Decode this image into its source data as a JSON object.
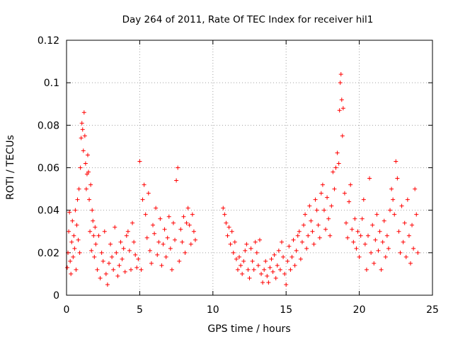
{
  "chart_data": {
    "type": "scatter",
    "title": "Day 264 of 2011, Rate Of TEC Index for receiver hil1",
    "xlabel": "GPS time / hours",
    "ylabel": "ROTI / TECUs",
    "xlim": [
      0,
      25
    ],
    "ylim": [
      0,
      0.12
    ],
    "xticks": [
      0,
      5,
      10,
      15,
      20,
      25
    ],
    "xtick_labels": [
      "0",
      "5",
      "10",
      "15",
      "20",
      "25"
    ],
    "yticks": [
      0,
      0.02,
      0.04,
      0.06,
      0.08,
      0.1,
      0.12
    ],
    "ytick_labels": [
      "0",
      "0.02",
      "0.04",
      "0.06",
      "0.08",
      "0.1",
      "0.12"
    ],
    "grid": true,
    "marker": "+",
    "series_color": "#ff0000",
    "points": [
      [
        0.05,
        0.013
      ],
      [
        0.1,
        0.02
      ],
      [
        0.15,
        0.03
      ],
      [
        0.2,
        0.039
      ],
      [
        0.25,
        0.016
      ],
      [
        0.3,
        0.01
      ],
      [
        0.35,
        0.025
      ],
      [
        0.4,
        0.035
      ],
      [
        0.45,
        0.018
      ],
      [
        0.5,
        0.028
      ],
      [
        0.55,
        0.022
      ],
      [
        0.6,
        0.04
      ],
      [
        0.65,
        0.012
      ],
      [
        0.7,
        0.033
      ],
      [
        0.75,
        0.045
      ],
      [
        0.8,
        0.026
      ],
      [
        0.85,
        0.05
      ],
      [
        0.9,
        0.02
      ],
      [
        0.95,
        0.06
      ],
      [
        1.0,
        0.074
      ],
      [
        1.05,
        0.081
      ],
      [
        1.1,
        0.078
      ],
      [
        1.15,
        0.068
      ],
      [
        1.2,
        0.086
      ],
      [
        1.25,
        0.075
      ],
      [
        1.3,
        0.062
      ],
      [
        1.35,
        0.05
      ],
      [
        1.4,
        0.057
      ],
      [
        1.45,
        0.066
      ],
      [
        1.5,
        0.058
      ],
      [
        1.55,
        0.045
      ],
      [
        1.6,
        0.03
      ],
      [
        1.65,
        0.052
      ],
      [
        1.7,
        0.021
      ],
      [
        1.75,
        0.04
      ],
      [
        1.8,
        0.035
      ],
      [
        1.85,
        0.028
      ],
      [
        1.9,
        0.018
      ],
      [
        1.95,
        0.032
      ],
      [
        2.0,
        0.024
      ],
      [
        2.1,
        0.012
      ],
      [
        2.2,
        0.028
      ],
      [
        2.3,
        0.008
      ],
      [
        2.4,
        0.02
      ],
      [
        2.5,
        0.016
      ],
      [
        2.6,
        0.03
      ],
      [
        2.7,
        0.01
      ],
      [
        2.8,
        0.005
      ],
      [
        2.9,
        0.015
      ],
      [
        3.0,
        0.024
      ],
      [
        3.1,
        0.018
      ],
      [
        3.2,
        0.012
      ],
      [
        3.3,
        0.032
      ],
      [
        3.4,
        0.02
      ],
      [
        3.5,
        0.009
      ],
      [
        3.6,
        0.014
      ],
      [
        3.7,
        0.025
      ],
      [
        3.8,
        0.017
      ],
      [
        3.9,
        0.022
      ],
      [
        4.0,
        0.011
      ],
      [
        4.1,
        0.028
      ],
      [
        4.2,
        0.03
      ],
      [
        4.3,
        0.021
      ],
      [
        4.4,
        0.012
      ],
      [
        4.5,
        0.034
      ],
      [
        4.6,
        0.025
      ],
      [
        4.7,
        0.019
      ],
      [
        4.8,
        0.013
      ],
      [
        4.9,
        0.017
      ],
      [
        5.0,
        0.063
      ],
      [
        5.1,
        0.012
      ],
      [
        5.2,
        0.045
      ],
      [
        5.3,
        0.052
      ],
      [
        5.4,
        0.038
      ],
      [
        5.5,
        0.027
      ],
      [
        5.6,
        0.048
      ],
      [
        5.7,
        0.021
      ],
      [
        5.8,
        0.015
      ],
      [
        5.9,
        0.033
      ],
      [
        6.0,
        0.029
      ],
      [
        6.1,
        0.041
      ],
      [
        6.2,
        0.019
      ],
      [
        6.3,
        0.025
      ],
      [
        6.4,
        0.036
      ],
      [
        6.5,
        0.014
      ],
      [
        6.6,
        0.024
      ],
      [
        6.7,
        0.031
      ],
      [
        6.8,
        0.018
      ],
      [
        6.9,
        0.027
      ],
      [
        7.0,
        0.037
      ],
      [
        7.1,
        0.022
      ],
      [
        7.2,
        0.012
      ],
      [
        7.3,
        0.034
      ],
      [
        7.4,
        0.026
      ],
      [
        7.5,
        0.054
      ],
      [
        7.6,
        0.06
      ],
      [
        7.7,
        0.016
      ],
      [
        7.8,
        0.031
      ],
      [
        7.9,
        0.025
      ],
      [
        8.0,
        0.037
      ],
      [
        8.1,
        0.02
      ],
      [
        8.2,
        0.034
      ],
      [
        8.3,
        0.041
      ],
      [
        8.4,
        0.033
      ],
      [
        8.5,
        0.024
      ],
      [
        8.6,
        0.038
      ],
      [
        8.7,
        0.03
      ],
      [
        8.8,
        0.026
      ],
      [
        10.7,
        0.041
      ],
      [
        10.8,
        0.038
      ],
      [
        10.9,
        0.034
      ],
      [
        11.0,
        0.028
      ],
      [
        11.1,
        0.032
      ],
      [
        11.2,
        0.024
      ],
      [
        11.3,
        0.03
      ],
      [
        11.4,
        0.02
      ],
      [
        11.5,
        0.025
      ],
      [
        11.6,
        0.017
      ],
      [
        11.7,
        0.012
      ],
      [
        11.8,
        0.018
      ],
      [
        11.9,
        0.014
      ],
      [
        12.0,
        0.01
      ],
      [
        12.1,
        0.016
      ],
      [
        12.2,
        0.021
      ],
      [
        12.3,
        0.024
      ],
      [
        12.4,
        0.012
      ],
      [
        12.5,
        0.008
      ],
      [
        12.6,
        0.022
      ],
      [
        12.7,
        0.016
      ],
      [
        12.8,
        0.012
      ],
      [
        12.9,
        0.025
      ],
      [
        13.0,
        0.02
      ],
      [
        13.1,
        0.014
      ],
      [
        13.2,
        0.026
      ],
      [
        13.3,
        0.01
      ],
      [
        13.4,
        0.006
      ],
      [
        13.5,
        0.012
      ],
      [
        13.6,
        0.016
      ],
      [
        13.7,
        0.009
      ],
      [
        13.8,
        0.006
      ],
      [
        13.9,
        0.013
      ],
      [
        14.0,
        0.017
      ],
      [
        14.1,
        0.011
      ],
      [
        14.2,
        0.019
      ],
      [
        14.3,
        0.008
      ],
      [
        14.4,
        0.014
      ],
      [
        14.5,
        0.021
      ],
      [
        14.6,
        0.012
      ],
      [
        14.7,
        0.025
      ],
      [
        14.8,
        0.018
      ],
      [
        14.9,
        0.01
      ],
      [
        15.0,
        0.005
      ],
      [
        15.1,
        0.016
      ],
      [
        15.2,
        0.023
      ],
      [
        15.3,
        0.012
      ],
      [
        15.4,
        0.018
      ],
      [
        15.5,
        0.026
      ],
      [
        15.6,
        0.014
      ],
      [
        15.7,
        0.021
      ],
      [
        15.8,
        0.028
      ],
      [
        15.9,
        0.03
      ],
      [
        16.0,
        0.017
      ],
      [
        16.1,
        0.025
      ],
      [
        16.2,
        0.033
      ],
      [
        16.3,
        0.038
      ],
      [
        16.4,
        0.022
      ],
      [
        16.5,
        0.028
      ],
      [
        16.6,
        0.042
      ],
      [
        16.7,
        0.035
      ],
      [
        16.8,
        0.03
      ],
      [
        16.9,
        0.024
      ],
      [
        17.0,
        0.045
      ],
      [
        17.1,
        0.04
      ],
      [
        17.2,
        0.033
      ],
      [
        17.3,
        0.027
      ],
      [
        17.4,
        0.048
      ],
      [
        17.5,
        0.052
      ],
      [
        17.6,
        0.04
      ],
      [
        17.7,
        0.031
      ],
      [
        17.8,
        0.046
      ],
      [
        17.9,
        0.036
      ],
      [
        18.0,
        0.028
      ],
      [
        18.1,
        0.042
      ],
      [
        18.2,
        0.058
      ],
      [
        18.3,
        0.05
      ],
      [
        18.4,
        0.06
      ],
      [
        18.5,
        0.067
      ],
      [
        18.6,
        0.062
      ],
      [
        18.65,
        0.087
      ],
      [
        18.7,
        0.1
      ],
      [
        18.75,
        0.104
      ],
      [
        18.8,
        0.092
      ],
      [
        18.85,
        0.075
      ],
      [
        18.9,
        0.088
      ],
      [
        19.0,
        0.048
      ],
      [
        19.1,
        0.034
      ],
      [
        19.2,
        0.027
      ],
      [
        19.3,
        0.044
      ],
      [
        19.4,
        0.052
      ],
      [
        19.5,
        0.031
      ],
      [
        19.6,
        0.025
      ],
      [
        19.7,
        0.036
      ],
      [
        19.8,
        0.022
      ],
      [
        19.9,
        0.03
      ],
      [
        20.0,
        0.018
      ],
      [
        20.1,
        0.028
      ],
      [
        20.2,
        0.036
      ],
      [
        20.3,
        0.045
      ],
      [
        20.4,
        0.024
      ],
      [
        20.5,
        0.012
      ],
      [
        20.6,
        0.028
      ],
      [
        20.7,
        0.055
      ],
      [
        20.8,
        0.02
      ],
      [
        20.9,
        0.033
      ],
      [
        21.0,
        0.015
      ],
      [
        21.1,
        0.026
      ],
      [
        21.2,
        0.038
      ],
      [
        21.3,
        0.021
      ],
      [
        21.4,
        0.03
      ],
      [
        21.5,
        0.012
      ],
      [
        21.6,
        0.025
      ],
      [
        21.7,
        0.035
      ],
      [
        21.8,
        0.018
      ],
      [
        21.9,
        0.028
      ],
      [
        22.0,
        0.022
      ],
      [
        22.1,
        0.04
      ],
      [
        22.2,
        0.05
      ],
      [
        22.3,
        0.045
      ],
      [
        22.4,
        0.038
      ],
      [
        22.5,
        0.063
      ],
      [
        22.6,
        0.055
      ],
      [
        22.7,
        0.03
      ],
      [
        22.8,
        0.02
      ],
      [
        22.9,
        0.042
      ],
      [
        23.0,
        0.025
      ],
      [
        23.1,
        0.034
      ],
      [
        23.2,
        0.018
      ],
      [
        23.3,
        0.045
      ],
      [
        23.4,
        0.028
      ],
      [
        23.5,
        0.015
      ],
      [
        23.6,
        0.033
      ],
      [
        23.7,
        0.022
      ],
      [
        23.8,
        0.05
      ],
      [
        23.9,
        0.038
      ],
      [
        24.0,
        0.02
      ]
    ]
  }
}
